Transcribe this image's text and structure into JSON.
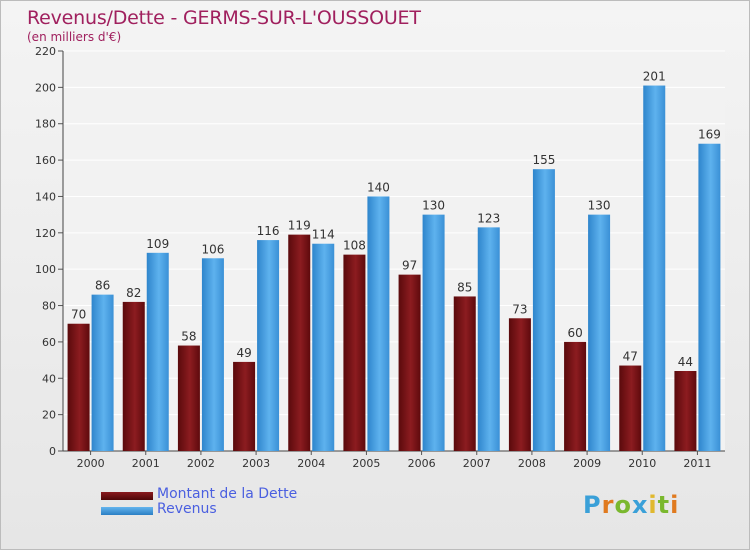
{
  "title": "Revenus/Dette - GERMS-SUR-L'OUSSOUET",
  "subtitle": "(en milliers d'€)",
  "colors": {
    "title": "#a0205e",
    "dette": "#6e0f12",
    "revenus": "#3a97dd",
    "legend_text": "#4a5fe0"
  },
  "chart_data": {
    "type": "bar",
    "categories": [
      "2000",
      "2001",
      "2002",
      "2003",
      "2004",
      "2005",
      "2006",
      "2007",
      "2008",
      "2009",
      "2010",
      "2011"
    ],
    "series": [
      {
        "name": "Montant de la Dette",
        "values": [
          70,
          82,
          58,
          49,
          119,
          108,
          97,
          85,
          73,
          60,
          47,
          44
        ]
      },
      {
        "name": "Revenus",
        "values": [
          86,
          109,
          106,
          116,
          114,
          140,
          130,
          123,
          155,
          130,
          201,
          169
        ]
      }
    ],
    "ylim": [
      0,
      220
    ],
    "yticks": [
      0,
      20,
      40,
      60,
      80,
      100,
      120,
      140,
      160,
      180,
      200,
      220
    ],
    "grid": true,
    "legend_position": "bottom-left"
  },
  "legend": [
    {
      "label": "Montant de la Dette",
      "color_key": "dette"
    },
    {
      "label": "Revenus",
      "color_key": "revenus"
    }
  ],
  "logo": {
    "letters": [
      "P",
      "r",
      "o",
      "x",
      "i",
      "t",
      "i"
    ],
    "colors": [
      "#3aa0d8",
      "#e07a1f",
      "#7ab82e",
      "#3aa0d8",
      "#e0b82e",
      "#7ab82e",
      "#e07a1f"
    ]
  }
}
